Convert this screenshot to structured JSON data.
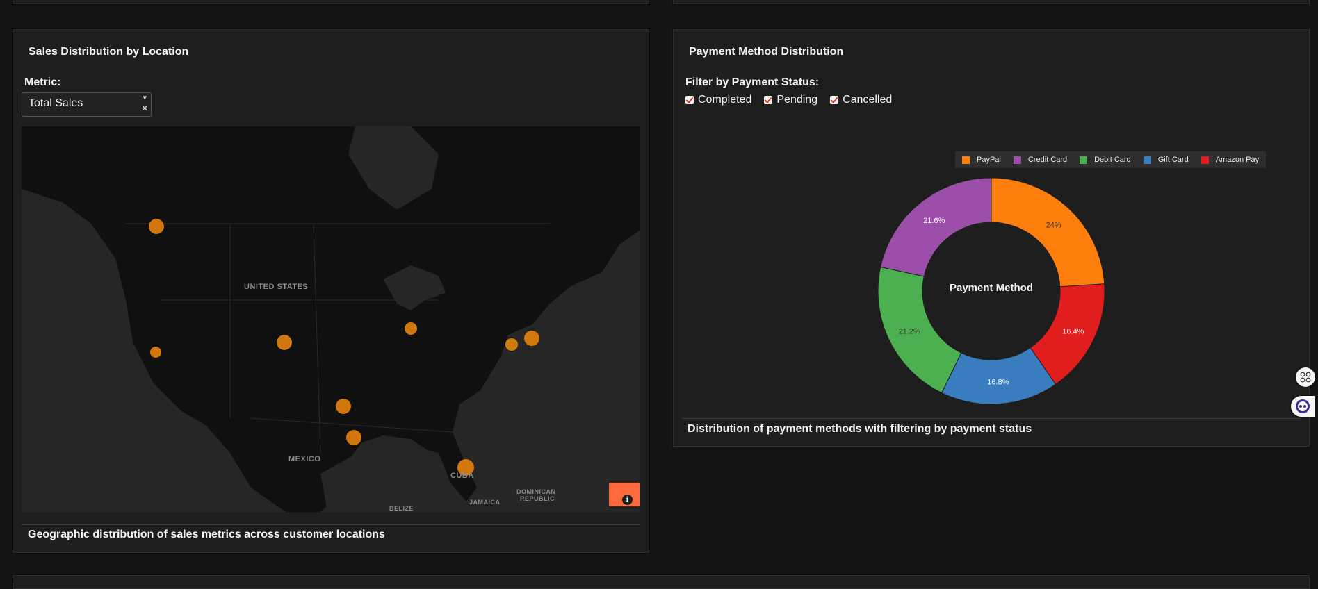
{
  "sales_map": {
    "title": "Sales Distribution by Location",
    "metric_label": "Metric:",
    "metric_value": "Total Sales",
    "caret": "▾",
    "clear": "×",
    "places": [
      "UNITED STATES",
      "MEXICO",
      "CUBA",
      "DOMINICAN",
      "REPUBLIC",
      "JAMAICA",
      "BELIZE"
    ],
    "info_symbol": "i",
    "badge_color": "#ff6a3d",
    "marker_color": "#e8820e",
    "footer": "Geographic distribution of sales metrics across customer locations"
  },
  "payment": {
    "title": "Payment Method Distribution",
    "filter_label": "Filter by Payment Status:",
    "filters": [
      "Completed",
      "Pending",
      "Cancelled"
    ],
    "footer": "Distribution of payment methods with filtering by payment status"
  },
  "chart_data": {
    "type": "pie",
    "hole": true,
    "center_label": "Payment Method",
    "legend_position": "top-right",
    "categories": [
      "PayPal",
      "Credit Card",
      "Debit Card",
      "Gift Card",
      "Amazon Pay"
    ],
    "legend_order": [
      "PayPal",
      "Credit Card",
      "Debit Card",
      "Gift Card",
      "Amazon Pay"
    ],
    "slice_order": [
      "PayPal",
      "Amazon Pay",
      "Gift Card",
      "Debit Card",
      "Credit Card"
    ],
    "values": {
      "PayPal": 24,
      "Amazon Pay": 16.4,
      "Gift Card": 16.8,
      "Debit Card": 21.2,
      "Credit Card": 21.6
    },
    "labels": {
      "PayPal": "24%",
      "Amazon Pay": "16.4%",
      "Gift Card": "16.8%",
      "Debit Card": "21.2%",
      "Credit Card": "21.6%"
    },
    "colors": {
      "PayPal": "#ff7f0e",
      "Credit Card": "#9b4fa8",
      "Debit Card": "#4caf50",
      "Gift Card": "#3a7dbf",
      "Amazon Pay": "#e11d1d"
    }
  },
  "side_buttons": [
    "grid-icon",
    "assistant-icon"
  ]
}
